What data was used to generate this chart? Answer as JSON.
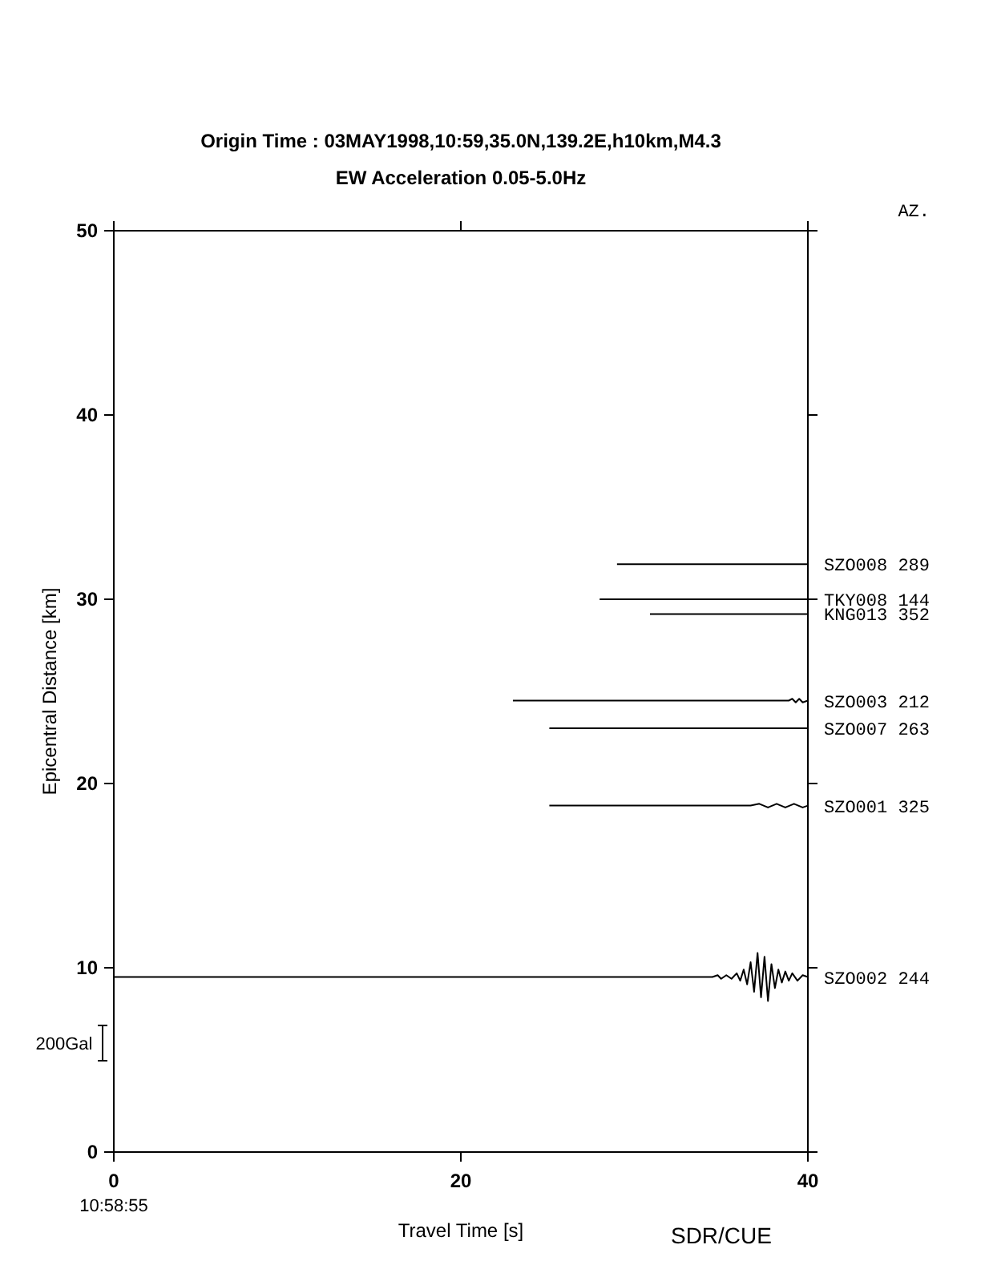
{
  "chart_data": {
    "type": "line",
    "title": "Origin Time : 03MAY1998,10:59,35.0N,139.2E,h10km,M4.3",
    "subtitle": "EW Acceleration 0.05-5.0Hz",
    "xlabel": "Travel Time [s]",
    "ylabel": "Epicentral Distance [km]",
    "xlim": [
      0,
      40
    ],
    "xticks": [
      0,
      20,
      40
    ],
    "ylim": [
      0,
      50
    ],
    "yticks": [
      0,
      10,
      20,
      30,
      40,
      50
    ],
    "grid": false,
    "legend": "right",
    "marker": "none",
    "line_style": "solid",
    "annotations": [
      "AZ.",
      "200Gal",
      "10:58:55",
      "SDR/CUE"
    ],
    "series": [
      {
        "name": "SZO008 289",
        "color": "#000000",
        "x": [
          29.0,
          40
        ],
        "values": [
          31.9,
          31.9
        ]
      },
      {
        "name": "TKY008 144",
        "color": "#000000",
        "x": [
          28.0,
          40
        ],
        "values": [
          30.0,
          30.0
        ]
      },
      {
        "name": "KNG013 352",
        "color": "#000000",
        "x": [
          30.9,
          40
        ],
        "values": [
          29.2,
          29.2
        ]
      },
      {
        "name": "SZO003 212",
        "color": "#000000",
        "x": [
          23.0,
          38.9,
          39.1,
          39.3,
          39.5,
          39.7,
          40
        ],
        "values": [
          24.5,
          24.5,
          24.6,
          24.4,
          24.6,
          24.4,
          24.5
        ]
      },
      {
        "name": "SZO007 263",
        "color": "#000000",
        "x": [
          25.1,
          40
        ],
        "values": [
          23.0,
          23.0
        ]
      },
      {
        "name": "SZO001 325",
        "color": "#000000",
        "x": [
          25.1,
          36.7,
          37.2,
          37.7,
          38.2,
          38.7,
          39.2,
          39.7,
          40
        ],
        "values": [
          18.8,
          18.8,
          18.9,
          18.7,
          18.9,
          18.7,
          18.9,
          18.7,
          18.8
        ]
      },
      {
        "name": "SZO002 244",
        "color": "#000000",
        "x": [
          0,
          34.5,
          34.8,
          35.0,
          35.3,
          35.6,
          35.9,
          36.1,
          36.3,
          36.5,
          36.7,
          36.9,
          37.1,
          37.3,
          37.5,
          37.7,
          37.9,
          38.1,
          38.3,
          38.5,
          38.7,
          38.9,
          39.1,
          39.4,
          39.7,
          40
        ],
        "values": [
          9.5,
          9.5,
          9.6,
          9.4,
          9.6,
          9.4,
          9.7,
          9.3,
          9.9,
          9.1,
          10.3,
          8.7,
          10.8,
          8.4,
          10.6,
          8.2,
          10.2,
          8.9,
          9.9,
          9.2,
          9.8,
          9.3,
          9.7,
          9.3,
          9.6,
          9.5
        ]
      }
    ]
  }
}
